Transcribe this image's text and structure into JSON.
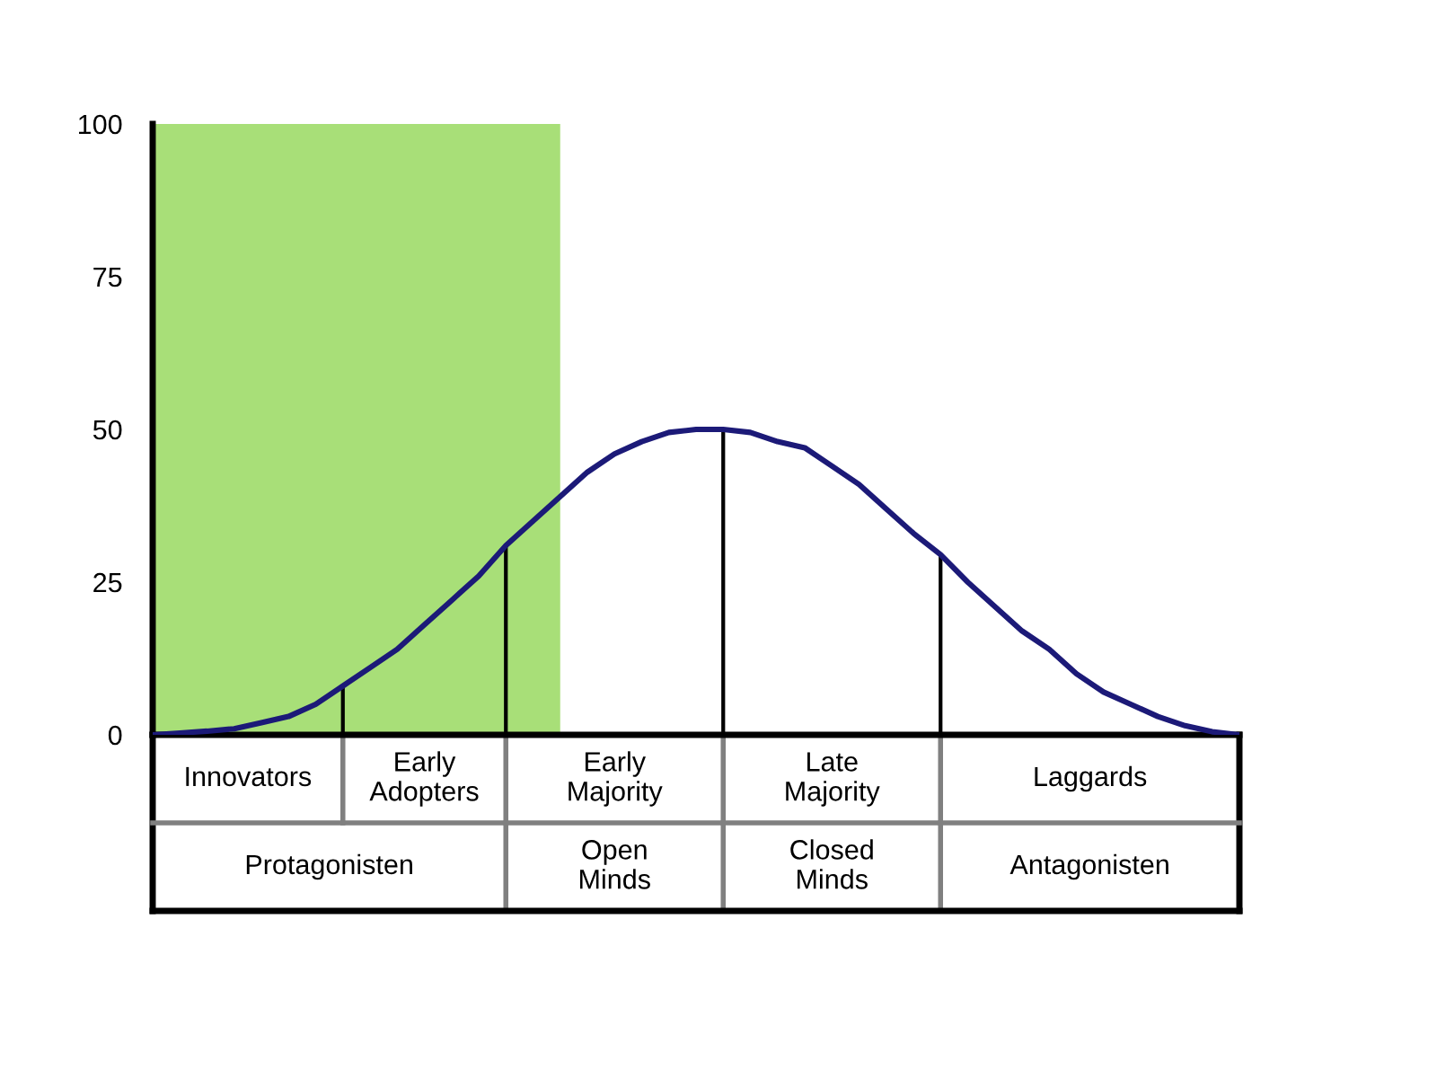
{
  "chart_data": {
    "type": "line",
    "categories": [
      null,
      null,
      null,
      null,
      null,
      null,
      null,
      null,
      null,
      null,
      null,
      null,
      null,
      null,
      null,
      null,
      null,
      null,
      null,
      null,
      null,
      null,
      null,
      null,
      null,
      null,
      null,
      null,
      null,
      null,
      null,
      null,
      null,
      null,
      null,
      null,
      null,
      null,
      null,
      null,
      null
    ],
    "series": [
      {
        "type": "area",
        "color": "#a8df78",
        "values": [
          100,
          100,
          100,
          100,
          100,
          100,
          100,
          100,
          100,
          100,
          100,
          100,
          100,
          100,
          100,
          100,
          null,
          null,
          null,
          null,
          null,
          null,
          null,
          null,
          null,
          null,
          null,
          null,
          null,
          null,
          null,
          null,
          null,
          null,
          null,
          null,
          null,
          null,
          null,
          null,
          null
        ]
      },
      {
        "type": "bar",
        "color": "#000000",
        "values": [
          null,
          null,
          null,
          null,
          null,
          null,
          null,
          8,
          null,
          null,
          null,
          null,
          null,
          31,
          null,
          null,
          null,
          null,
          null,
          null,
          null,
          50,
          null,
          null,
          null,
          null,
          null,
          null,
          null,
          29.5,
          null,
          null,
          null,
          null,
          null,
          null,
          null,
          null,
          null,
          null,
          null
        ]
      },
      {
        "color": "#1c1a78",
        "values": [
          0,
          0.3,
          0.6,
          1,
          2,
          3,
          5,
          8,
          11,
          14,
          18,
          22,
          26,
          31,
          35,
          39,
          43,
          46,
          48,
          49.5,
          50,
          50,
          49.5,
          48,
          47,
          44,
          41,
          37,
          33,
          29.5,
          25,
          21,
          17,
          14,
          10,
          7,
          5,
          3,
          1.5,
          0.5,
          0
        ]
      }
    ],
    "ylim": [
      0,
      100
    ],
    "yticks": [
      0,
      25,
      50,
      75,
      100
    ],
    "tick_labels": "y",
    "grid": false,
    "legend": false,
    "marker": "none",
    "line_style": "solid",
    "annotations": [
      "Innovators",
      "Early\nAdopters",
      "Early\nMajority",
      "Late\nMajority",
      "Laggards",
      "Protagonisten",
      "Open\nMinds",
      "Closed\nMinds",
      "Antagonisten"
    ]
  }
}
